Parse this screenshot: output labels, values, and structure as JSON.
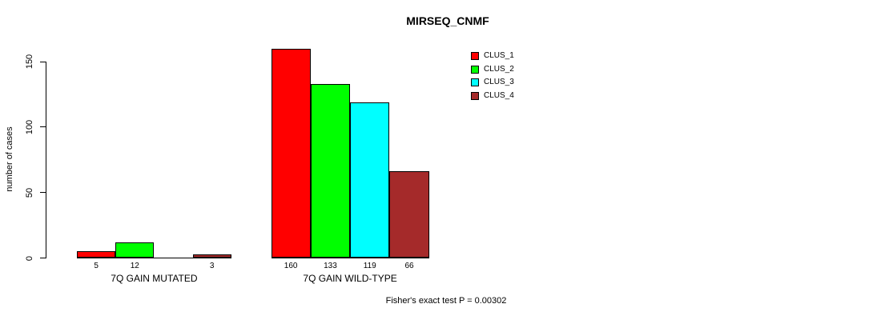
{
  "chart_data": {
    "type": "bar",
    "title": "MIRSEQ_CNMF",
    "xlabel": "",
    "ylabel": "number of cases",
    "ylim": [
      0,
      160
    ],
    "yticks": [
      0,
      50,
      100,
      150
    ],
    "grid": false,
    "legend_position": "top-right",
    "categories": [
      "7Q GAIN MUTATED",
      "7Q GAIN WILD-TYPE"
    ],
    "series": [
      {
        "name": "CLUS_1",
        "color": "#FF0000",
        "values": [
          5,
          160
        ]
      },
      {
        "name": "CLUS_2",
        "color": "#00FF00",
        "values": [
          12,
          133
        ]
      },
      {
        "name": "CLUS_3",
        "color": "#00FFFF",
        "values": [
          0,
          119
        ]
      },
      {
        "name": "CLUS_4",
        "color": "#A52A2A",
        "values": [
          3,
          66
        ]
      }
    ],
    "bar_value_labels": [
      [
        "5",
        "12",
        "",
        "3"
      ],
      [
        "160",
        "133",
        "119",
        "66"
      ]
    ],
    "zero_value_bars_hidden": true,
    "bar_border_color": "#000000",
    "annotation": "Fisher's exact test P = 0.00302"
  }
}
